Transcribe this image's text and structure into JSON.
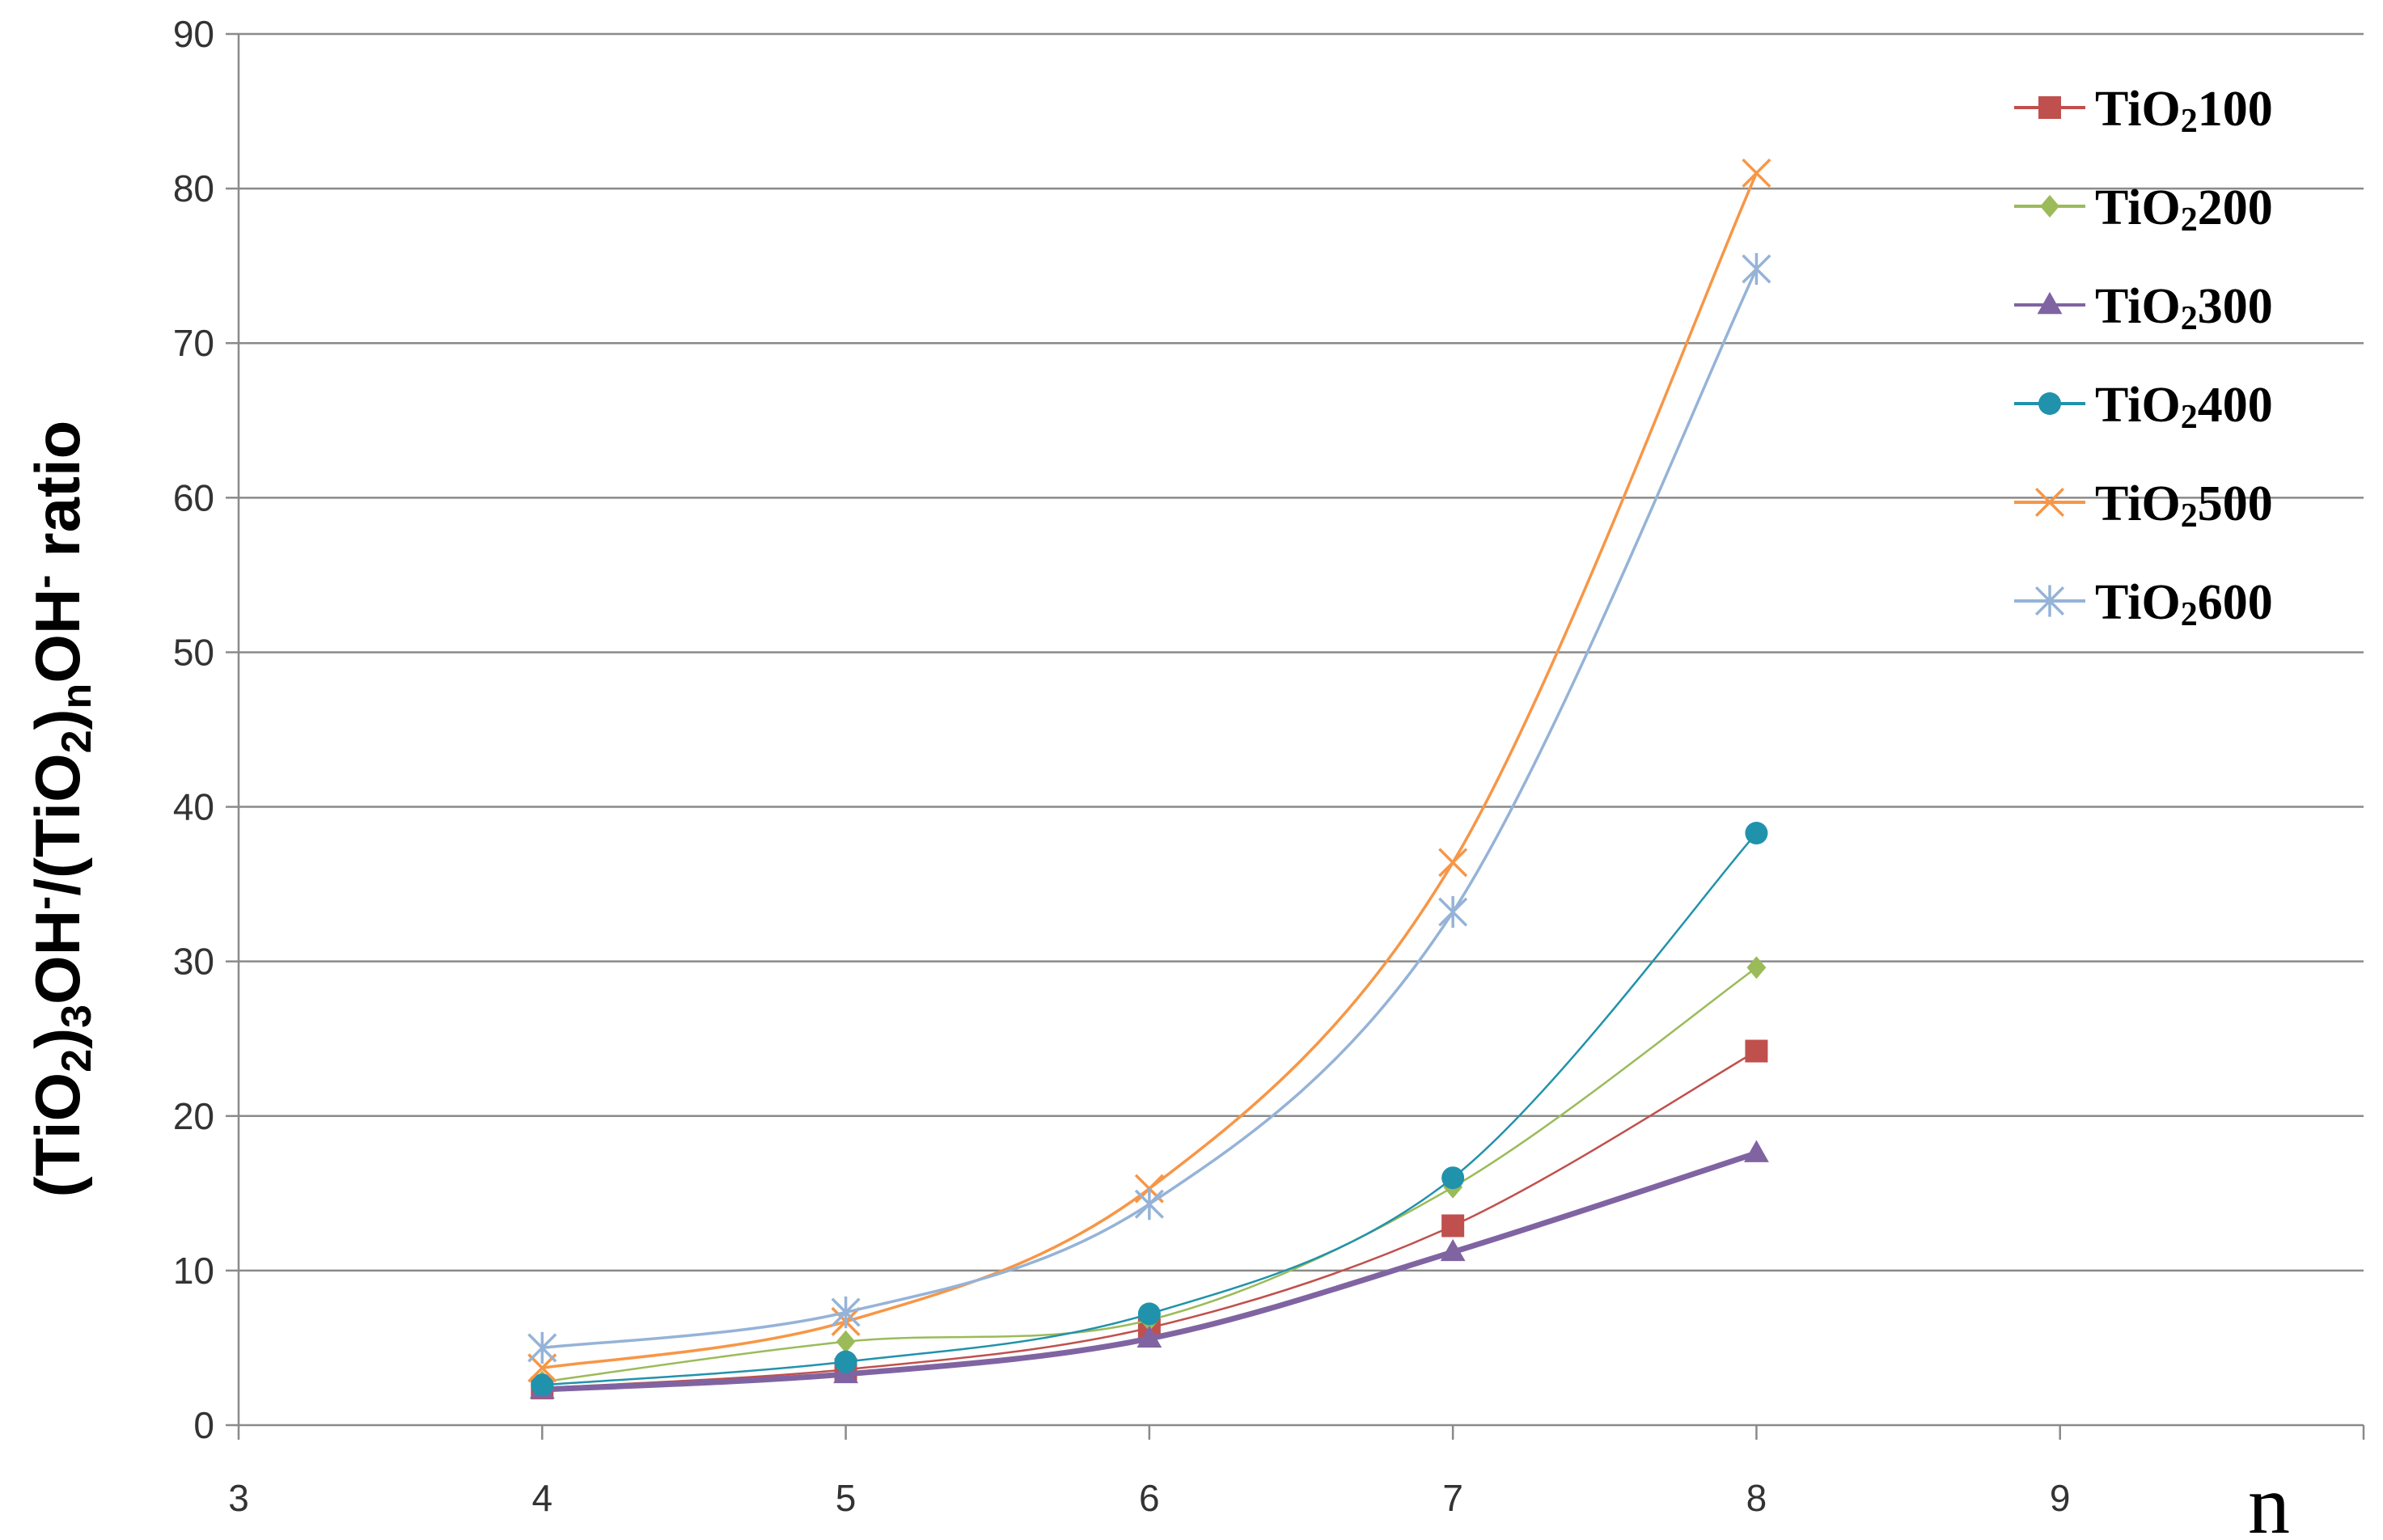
{
  "chart_data": {
    "type": "line",
    "title": "",
    "xlabel": "n",
    "ylabel_parts": [
      "(TiO",
      "2",
      ")",
      "3",
      "OH",
      "-",
      "/(TiO",
      "2",
      ")",
      "n",
      "OH",
      "-",
      " ratio"
    ],
    "xlim": [
      3,
      10
    ],
    "ylim": [
      0,
      90
    ],
    "x_ticks": [
      "3",
      "4",
      "5",
      "6",
      "7",
      "8",
      "9"
    ],
    "y_ticks": [
      "0",
      "10",
      "20",
      "30",
      "40",
      "50",
      "60",
      "70",
      "80",
      "90"
    ],
    "grid": "horizontal",
    "legend_position": "top-right",
    "x": [
      4,
      5,
      6,
      7,
      8
    ],
    "series": [
      {
        "name_base": "TiO",
        "name_sub": "2",
        "name_num": "100",
        "color": "#C0504D",
        "marker": "square",
        "values": [
          2.4,
          3.6,
          6.3,
          12.9,
          24.2
        ]
      },
      {
        "name_base": "TiO",
        "name_sub": "2",
        "name_num": "200",
        "color": "#9BBB59",
        "marker": "diamond",
        "values": [
          2.8,
          5.4,
          6.8,
          15.4,
          29.6
        ]
      },
      {
        "name_base": "TiO",
        "name_sub": "2",
        "name_num": "300",
        "color": "#8064A2",
        "marker": "triangle",
        "values": [
          2.3,
          3.3,
          5.6,
          11.2,
          17.6
        ]
      },
      {
        "name_base": "TiO",
        "name_sub": "2",
        "name_num": "400",
        "color": "#2192AB",
        "marker": "circle",
        "values": [
          2.6,
          4.1,
          7.2,
          16.0,
          38.3
        ]
      },
      {
        "name_base": "TiO",
        "name_sub": "2",
        "name_num": "500",
        "color": "#F79646",
        "marker": "x",
        "values": [
          3.7,
          6.7,
          15.3,
          36.4,
          81.0
        ]
      },
      {
        "name_base": "TiO",
        "name_sub": "2",
        "name_num": "600",
        "color": "#95B3D7",
        "marker": "star",
        "values": [
          5.0,
          7.3,
          14.3,
          33.2,
          74.8
        ]
      }
    ]
  }
}
